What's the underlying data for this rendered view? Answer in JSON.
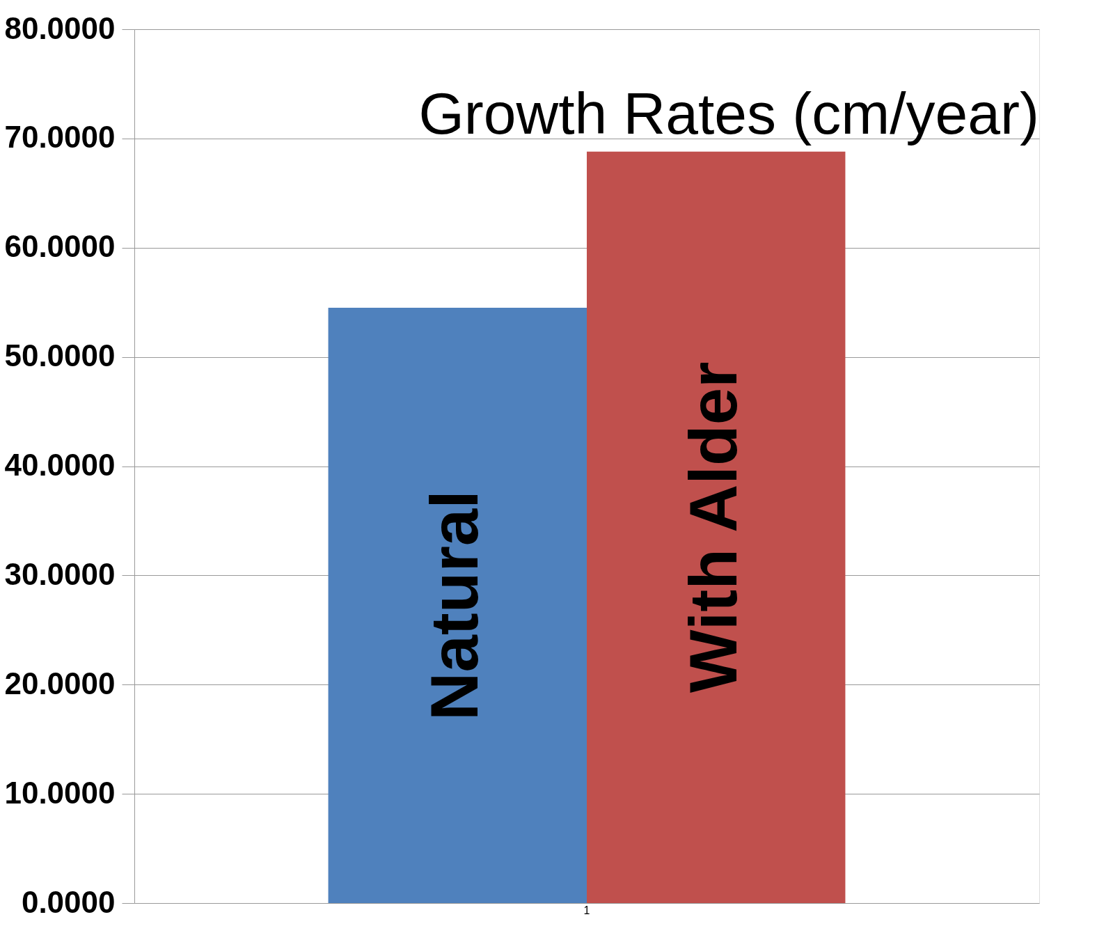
{
  "chart_data": {
    "type": "bar",
    "title": "Growth Rates (cm/year)",
    "categories": [
      "1"
    ],
    "series": [
      {
        "name": "Natural",
        "color": "#4f81bd",
        "values": [
          54.5
        ]
      },
      {
        "name": "With Alder",
        "color": "#c0504d",
        "values": [
          68.8
        ]
      }
    ],
    "ylim": [
      0,
      80
    ],
    "yticks": [
      {
        "value": 0,
        "label": "0.0000"
      },
      {
        "value": 10,
        "label": "10.0000"
      },
      {
        "value": 20,
        "label": "20.0000"
      },
      {
        "value": 30,
        "label": "30.0000"
      },
      {
        "value": 40,
        "label": "40.0000"
      },
      {
        "value": 50,
        "label": "50.0000"
      },
      {
        "value": 60,
        "label": "60.0000"
      },
      {
        "value": 70,
        "label": "70.0000"
      },
      {
        "value": 80,
        "label": "80.0000"
      }
    ],
    "grid": "y",
    "legend": false
  }
}
